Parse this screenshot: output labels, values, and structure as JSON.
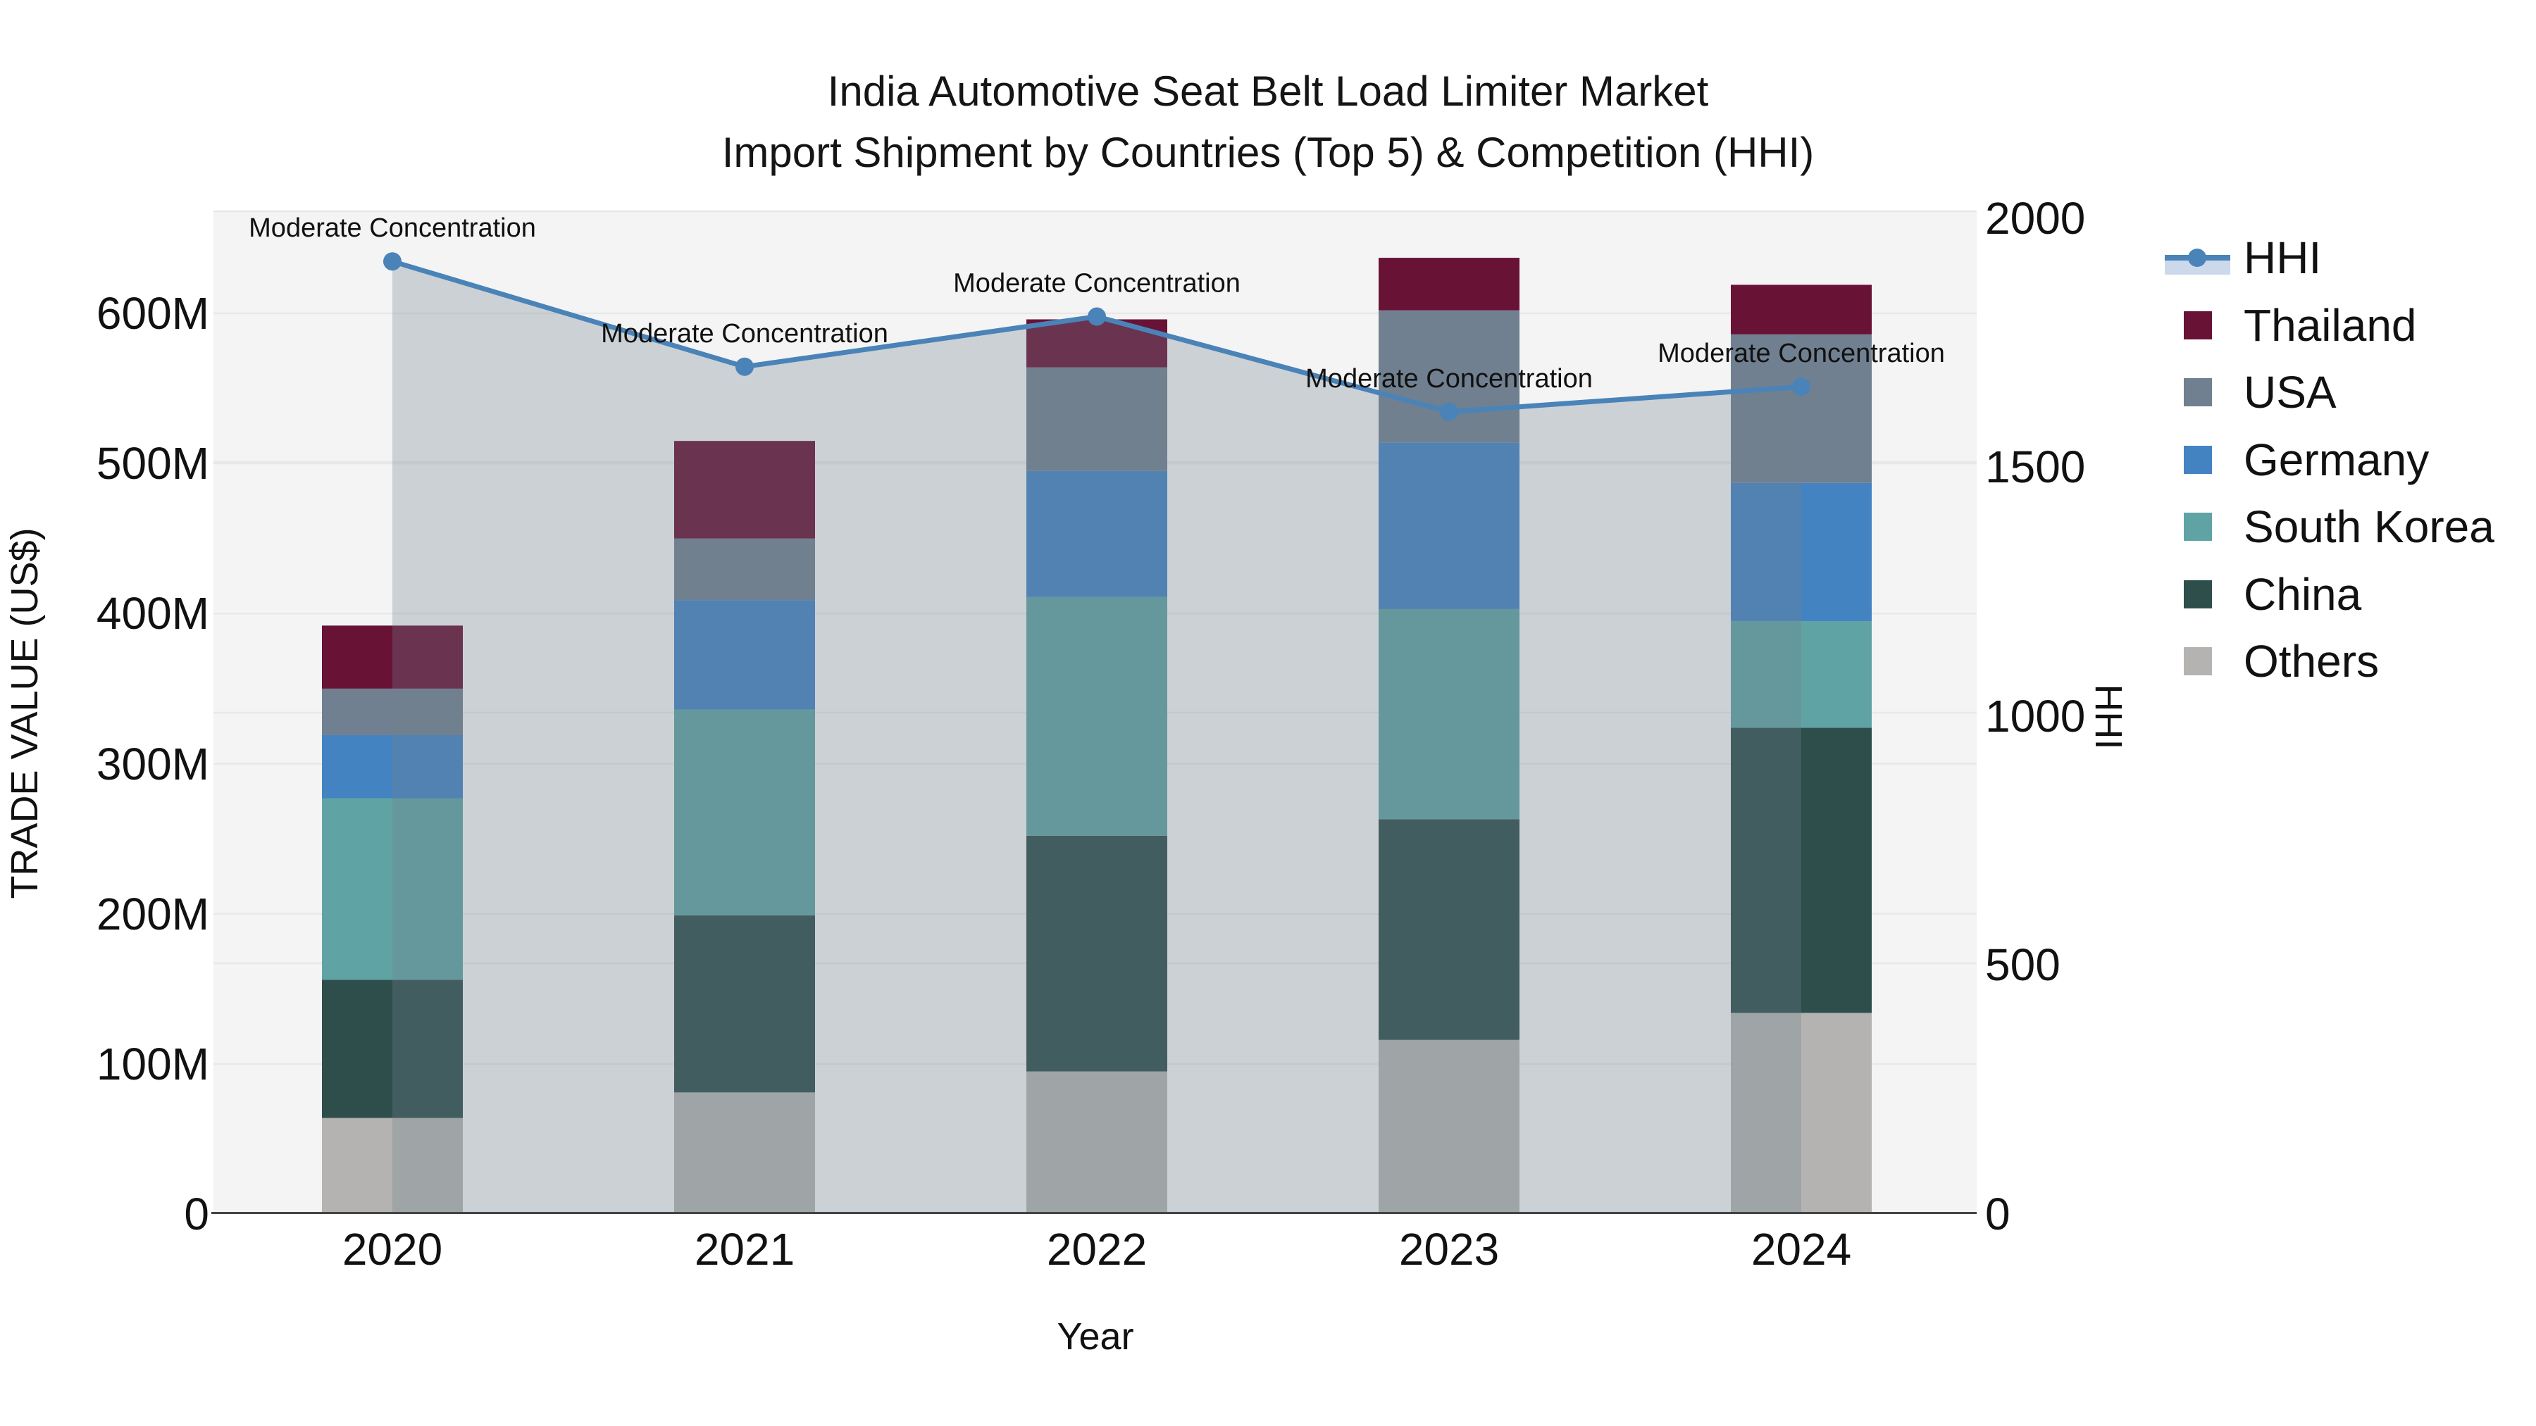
{
  "title": {
    "line1": "India Automotive Seat Belt Load Limiter Market",
    "line2": "Import Shipment by Countries (Top 5) & Competition (HHI)"
  },
  "axes": {
    "y_left": {
      "label": "TRADE VALUE (US$)",
      "ticks": [
        "600M",
        "500M",
        "400M",
        "300M",
        "200M",
        "100M",
        "0"
      ]
    },
    "y_right": {
      "label": "HHI",
      "ticks": [
        "2000",
        "1500",
        "1000",
        "500",
        "0"
      ]
    },
    "x": {
      "label": "Year",
      "ticks": [
        "2020",
        "2021",
        "2022",
        "2023",
        "2024"
      ]
    }
  },
  "legend": {
    "items": [
      {
        "label": "HHI",
        "type": "line",
        "color": "#4a83b8"
      },
      {
        "label": "Thailand",
        "type": "swatch",
        "color": "#681236"
      },
      {
        "label": "USA",
        "type": "swatch",
        "color": "#708090"
      },
      {
        "label": "Germany",
        "type": "swatch",
        "color": "#4483c2"
      },
      {
        "label": "South Korea",
        "type": "swatch",
        "color": "#60a3a4"
      },
      {
        "label": "China",
        "type": "swatch",
        "color": "#2e4e4c"
      },
      {
        "label": "Others",
        "type": "swatch",
        "color": "#b4b3b1"
      }
    ]
  },
  "chart_data": {
    "type": "bar",
    "stacked": true,
    "title": "India Automotive Seat Belt Load Limiter Market — Import Shipment by Countries (Top 5) & Competition (HHI)",
    "categories": [
      "2020",
      "2021",
      "2022",
      "2023",
      "2024"
    ],
    "unit": "M US$ (trade value, left axis)",
    "series": [
      {
        "name": "Others",
        "color": "#b4b3b1",
        "values": [
          64,
          81,
          95,
          116,
          134
        ]
      },
      {
        "name": "China",
        "color": "#2e4e4c",
        "values": [
          92,
          118,
          157,
          147,
          190
        ]
      },
      {
        "name": "South Korea",
        "color": "#60a3a4",
        "values": [
          121,
          137,
          159,
          140,
          71
        ]
      },
      {
        "name": "Germany",
        "color": "#4483c2",
        "values": [
          42,
          73,
          84,
          111,
          92
        ]
      },
      {
        "name": "USA",
        "color": "#708090",
        "values": [
          31,
          41,
          69,
          88,
          99
        ]
      },
      {
        "name": "Thailand",
        "color": "#681236",
        "values": [
          42,
          65,
          32,
          35,
          33
        ]
      }
    ],
    "line_series": {
      "name": "HHI",
      "axis": "right",
      "color": "#4a83b8",
      "area_fill": "rgba(112,128,144,0.30)",
      "values": [
        1900,
        1690,
        1790,
        1600,
        1650
      ],
      "annotations": [
        "Moderate Concentration",
        "Moderate Concentration",
        "Moderate Concentration",
        "Moderate Concentration",
        "Moderate Concentration"
      ]
    },
    "y_axis": {
      "label": "TRADE VALUE (US$)",
      "min": 0,
      "max": 668,
      "grid_ticks": [
        100,
        200,
        300,
        400,
        500,
        600
      ]
    },
    "y2_axis": {
      "label": "HHI",
      "min": 0,
      "max": 2000,
      "grid_ticks": [
        500,
        1000,
        1500,
        2000
      ]
    },
    "xlabel": "Year",
    "legend_position": "right",
    "grid": true
  }
}
